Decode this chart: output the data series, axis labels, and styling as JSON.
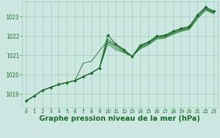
{
  "background_color": "#cce8e0",
  "grid_color": "#99ccbb",
  "line_color": "#1a6b2a",
  "marker_color": "#1a6b2a",
  "xlabel": "Graphe pression niveau de la mer (hPa)",
  "xlabel_fontsize": 7.5,
  "ylabel_ticks": [
    1019,
    1020,
    1021,
    1022,
    1023
  ],
  "xlim": [
    -0.5,
    23.5
  ],
  "ylim": [
    1018.3,
    1023.8
  ],
  "xticks": [
    0,
    1,
    2,
    3,
    4,
    5,
    6,
    7,
    8,
    9,
    10,
    11,
    12,
    13,
    14,
    15,
    16,
    17,
    18,
    19,
    20,
    21,
    22,
    23
  ],
  "series": [
    [
      1018.65,
      1018.9,
      1019.2,
      1019.35,
      1019.5,
      1019.6,
      1019.7,
      1019.9,
      1020.1,
      1020.35,
      1021.85,
      1021.55,
      1021.25,
      1020.95,
      1021.45,
      1021.65,
      1021.95,
      1022.0,
      1022.2,
      1022.35,
      1022.45,
      1023.05,
      1023.45,
      1023.25
    ],
    [
      1018.65,
      1018.9,
      1019.2,
      1019.35,
      1019.5,
      1019.6,
      1019.7,
      1019.9,
      1020.1,
      1020.35,
      1021.7,
      1021.4,
      1021.2,
      1020.95,
      1021.4,
      1021.6,
      1021.9,
      1021.95,
      1022.15,
      1022.3,
      1022.4,
      1022.95,
      1023.4,
      1023.2
    ],
    [
      1018.65,
      1018.9,
      1019.2,
      1019.35,
      1019.5,
      1019.6,
      1019.7,
      1019.9,
      1020.1,
      1020.35,
      1021.6,
      1021.3,
      1021.15,
      1020.95,
      1021.35,
      1021.55,
      1021.85,
      1021.9,
      1022.1,
      1022.25,
      1022.35,
      1022.9,
      1023.35,
      1023.15
    ],
    [
      1018.65,
      1018.9,
      1019.2,
      1019.35,
      1019.5,
      1019.6,
      1019.7,
      1020.6,
      1020.7,
      1021.25,
      1021.75,
      1021.5,
      1021.25,
      1020.95,
      1021.55,
      1021.7,
      1021.95,
      1022.0,
      1022.2,
      1022.35,
      1022.45,
      1023.1,
      1023.45,
      1023.25
    ]
  ],
  "main_series": [
    1018.65,
    1018.9,
    1019.2,
    1019.35,
    1019.5,
    1019.6,
    1019.7,
    1019.9,
    1020.1,
    1020.35,
    1022.05,
    1021.6,
    1021.3,
    1020.95,
    1021.5,
    1021.7,
    1022.0,
    1022.05,
    1022.25,
    1022.4,
    1022.5,
    1023.1,
    1023.5,
    1023.3
  ]
}
